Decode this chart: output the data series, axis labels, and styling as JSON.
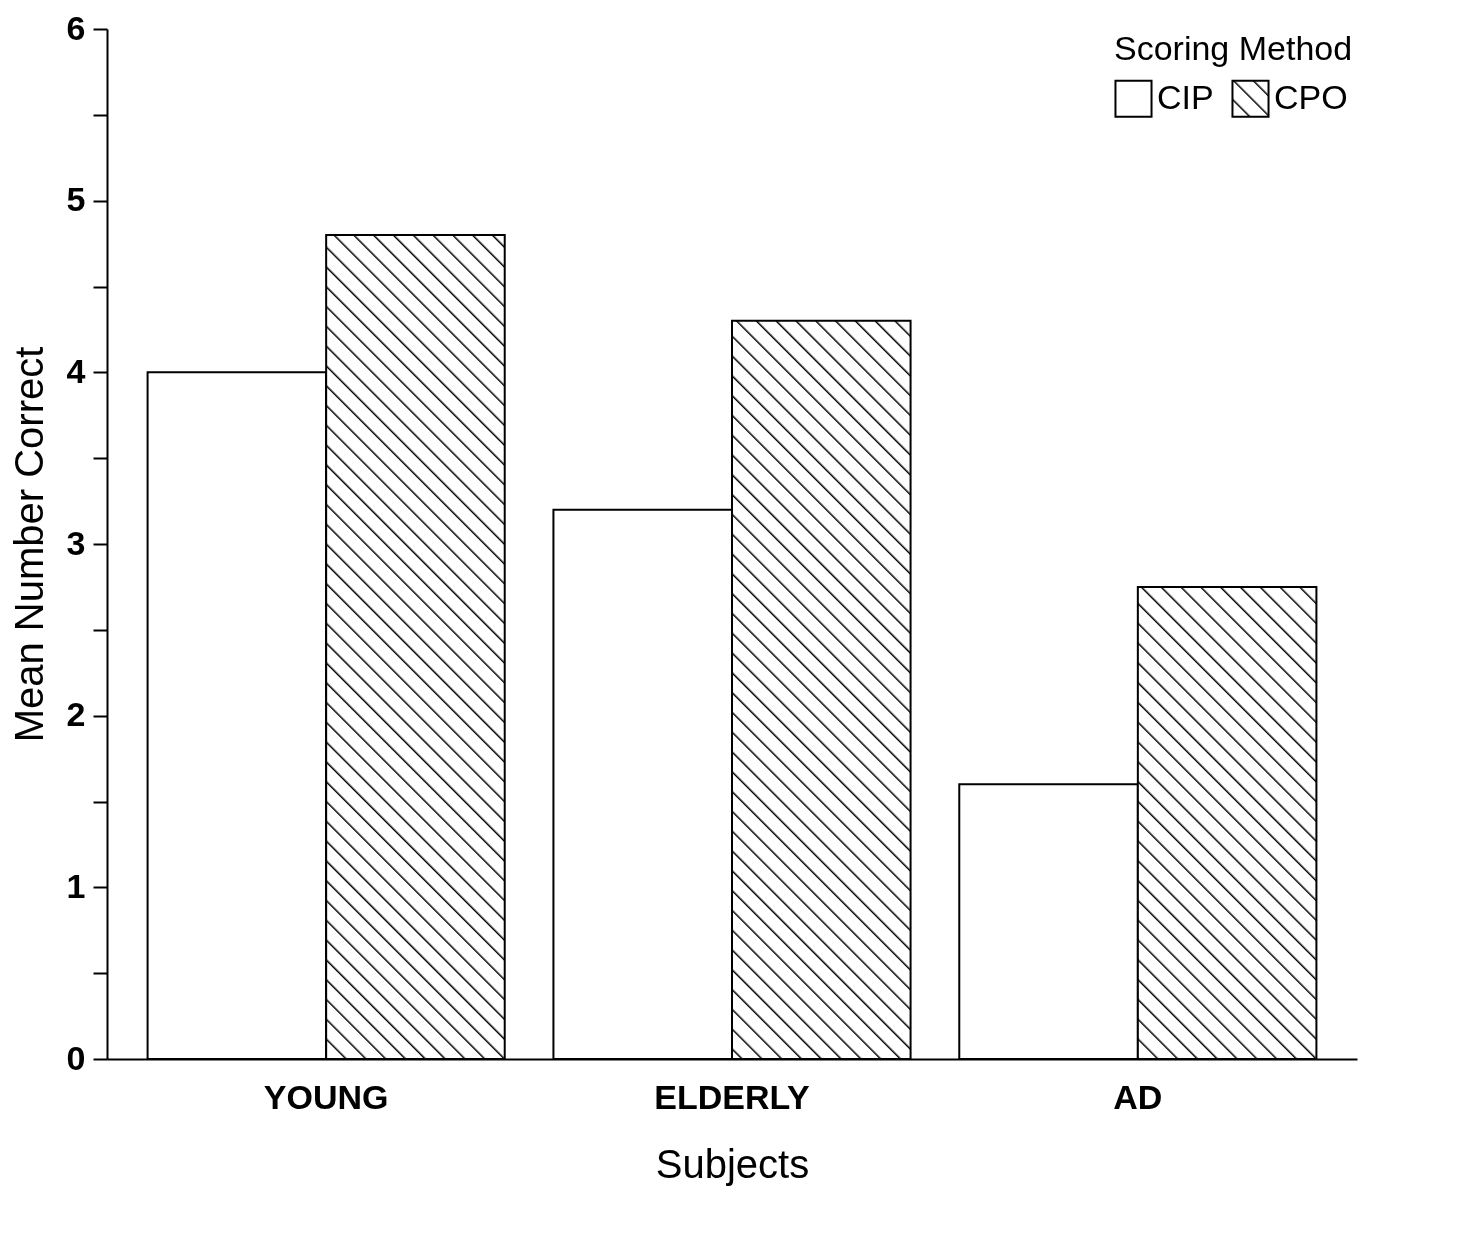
{
  "chart_data": {
    "type": "bar",
    "xlabel": "Subjects",
    "ylabel": "Mean Number Correct",
    "legend_title": "Scoring Method",
    "legend": "top right",
    "grid": false,
    "categories": [
      "YOUNG",
      "ELDERLY",
      "AD"
    ],
    "series": [
      {
        "name": "CIP",
        "color": "#ffffff",
        "values": [
          4.0,
          3.2,
          1.6
        ]
      },
      {
        "name": "CPO",
        "color": "#000000",
        "values": [
          4.8,
          4.3,
          2.75
        ]
      }
    ],
    "ylim": [
      0,
      6
    ],
    "yticks": [
      0,
      {
        "value": 0.5,
        "label": null
      },
      1,
      {
        "value": 1.5,
        "label": null
      },
      2,
      {
        "value": 2.5,
        "label": null
      },
      3,
      {
        "value": 3.5,
        "label": null
      },
      4,
      {
        "value": 4.5,
        "label": null
      },
      5,
      {
        "value": 5.5,
        "label": null
      },
      6
    ]
  }
}
